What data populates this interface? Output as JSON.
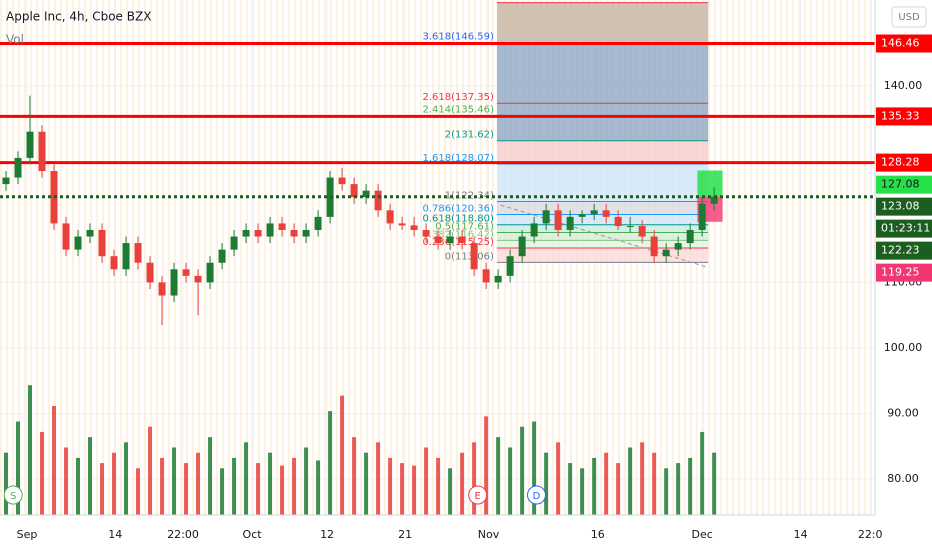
{
  "chart_data": {
    "type": "candlestick",
    "title": "Apple Inc, 4h, Cboe BZX",
    "volume_title": "Vol",
    "currency": "USD",
    "up_color": "#1e7b34",
    "down_color": "#e8403a",
    "xlim": [
      -0.5,
      72.4
    ],
    "ylim": [
      74.5,
      153.1
    ],
    "vol_ylim": [
      0,
      260
    ],
    "xticks": [
      {
        "value": 1.75,
        "label": "Sep"
      },
      {
        "value": 9.1,
        "label": "14"
      },
      {
        "value": 14.75,
        "label": "22:00"
      },
      {
        "value": 20.5,
        "label": "Oct"
      },
      {
        "value": 26.75,
        "label": "12"
      },
      {
        "value": 33.25,
        "label": "21"
      },
      {
        "value": 40.2,
        "label": "Nov"
      },
      {
        "value": 49.3,
        "label": "16"
      },
      {
        "value": 58,
        "label": "Dec"
      },
      {
        "value": 66.2,
        "label": "14"
      },
      {
        "value": 72,
        "label": "22:0"
      }
    ],
    "yticks": [
      {
        "value": 80,
        "label": "80.00"
      },
      {
        "value": 90,
        "label": "90.00"
      },
      {
        "value": 100,
        "label": "100.00"
      },
      {
        "value": 110,
        "label": "110.00"
      },
      {
        "value": 140,
        "label": "140.00"
      }
    ],
    "open": [
      125,
      126,
      129,
      133,
      127,
      119,
      115,
      117,
      118,
      114,
      112,
      116,
      113,
      110,
      108,
      112,
      111,
      110,
      113,
      115,
      117,
      118,
      117,
      119,
      118,
      117,
      118,
      120,
      126,
      125,
      123,
      124,
      121,
      119,
      118.7,
      118,
      117,
      116,
      117,
      116,
      112,
      110,
      111,
      114,
      117,
      119,
      121,
      118,
      120,
      120.4,
      121,
      120,
      118.6,
      118.6,
      117,
      114,
      115,
      116,
      118,
      122
    ],
    "high": [
      127,
      130,
      138.5,
      134,
      128,
      120,
      118,
      119,
      119,
      115,
      117,
      117,
      114,
      111,
      113,
      113,
      112,
      114,
      116,
      118,
      119,
      119,
      120,
      120,
      119,
      119,
      121,
      127,
      127.5,
      126,
      125,
      125,
      122,
      120,
      120,
      119,
      118,
      118,
      118,
      117,
      113,
      112,
      115,
      118,
      120,
      122,
      122,
      121,
      121,
      122,
      122,
      121,
      120,
      119.5,
      118,
      116,
      117,
      119,
      123,
      124.5
    ],
    "low": [
      124,
      125,
      128,
      126,
      118,
      114,
      114,
      116,
      113,
      111,
      111,
      112,
      109,
      103.5,
      107,
      110,
      105,
      109,
      112,
      114,
      116,
      116,
      116,
      117,
      116,
      116,
      117,
      119,
      124,
      122,
      122,
      120,
      118,
      118,
      117,
      116,
      115,
      115,
      115,
      111,
      109,
      109,
      110,
      113,
      116,
      118,
      117,
      117,
      119,
      119.5,
      119,
      118,
      117.6,
      116,
      113,
      113,
      114,
      115,
      117,
      121
    ],
    "close": [
      126,
      129,
      133,
      127,
      119,
      115,
      117,
      118,
      114,
      112,
      116,
      113,
      110,
      108,
      112,
      111,
      110,
      113,
      115,
      117,
      118,
      117,
      119,
      118,
      117,
      118,
      120,
      126,
      125,
      123,
      124,
      121,
      119,
      118.7,
      118,
      117,
      116,
      117,
      116,
      112,
      110,
      111,
      114,
      117,
      119,
      121,
      118,
      120,
      120.4,
      121,
      120,
      118.6,
      118.6,
      117,
      114,
      115,
      116,
      118,
      122,
      123.08
    ],
    "volume": [
      120,
      180,
      250,
      160,
      210,
      130,
      110,
      150,
      100,
      120,
      140,
      90,
      170,
      110,
      130,
      100,
      120,
      150,
      90,
      110,
      140,
      100,
      120,
      95,
      110,
      130,
      105,
      200,
      230,
      150,
      120,
      140,
      110,
      100,
      95,
      130,
      110,
      90,
      120,
      140,
      190,
      150,
      130,
      170,
      180,
      120,
      140,
      100,
      90,
      110,
      120,
      100,
      130,
      140,
      120,
      90,
      100,
      110,
      160,
      120
    ],
    "hlines": [
      {
        "price": 146.46,
        "color": "#ff0000"
      },
      {
        "price": 135.33,
        "color": "#ff0000"
      },
      {
        "price": 128.28,
        "color": "#ff0000"
      }
    ],
    "fib": {
      "x": [
        40.9,
        58.5
      ],
      "top": 152.7,
      "top_fill": "#c9b8a6",
      "levels": [
        {
          "label": "3.618(146.59)",
          "price": 146.59,
          "color": "#2962ff",
          "band": "#8fa8c4"
        },
        {
          "label": "2.618(137.35)",
          "price": 137.35,
          "color": "#f23645",
          "band": "#8fa8c4"
        },
        {
          "label": "2.414(135.46)",
          "price": 135.46,
          "color": "#4caf50",
          "band": "#8fa8c4"
        },
        {
          "label": "2(131.62)",
          "price": 131.62,
          "color": "#089981",
          "band": "#f7cccc"
        },
        {
          "label": "1.618(128.07)",
          "price": 128.07,
          "color": "#2196f3",
          "band": "#cfe6fa"
        },
        {
          "label": "1(122.34)",
          "price": 122.34,
          "color": "#787b86",
          "band": "#d8dbe2"
        },
        {
          "label": "0.786(120.36)",
          "price": 120.36,
          "color": "#2196f3",
          "band": "#cfe6fa"
        },
        {
          "label": "0.618(118.80)",
          "price": 118.8,
          "color": "#009688",
          "band": "#c8ebe5"
        },
        {
          "label": "0.5(117.61)",
          "price": 117.61,
          "color": "#4caf50",
          "band": "#d5eed6"
        },
        {
          "label": "0.382(116.42)",
          "price": 116.42,
          "color": "#81c784",
          "band": "#e2f3e3"
        },
        {
          "label": "0.236(115.25)",
          "price": 115.25,
          "color": "#f23645",
          "band": "#fbdada"
        },
        {
          "label": "0(113.06)",
          "price": 113.06,
          "color": "#787b86",
          "band": "#ffffff"
        }
      ]
    },
    "trendline": {
      "x": [
        41.2,
        58.3
      ],
      "y": [
        121.8,
        112.4
      ]
    },
    "position": {
      "x": [
        57.6,
        59.7
      ],
      "entry": 123.08,
      "target": 127.08,
      "stop": 119.25
    },
    "prev_level": 122.23,
    "countdown": "01:23:11",
    "events": [
      {
        "label": "S",
        "x": 0.6,
        "color": "#4caf50"
      },
      {
        "label": "E",
        "x": 39.3,
        "color": "#f23645"
      },
      {
        "label": "D",
        "x": 44.2,
        "color": "#2962ff"
      }
    ]
  }
}
